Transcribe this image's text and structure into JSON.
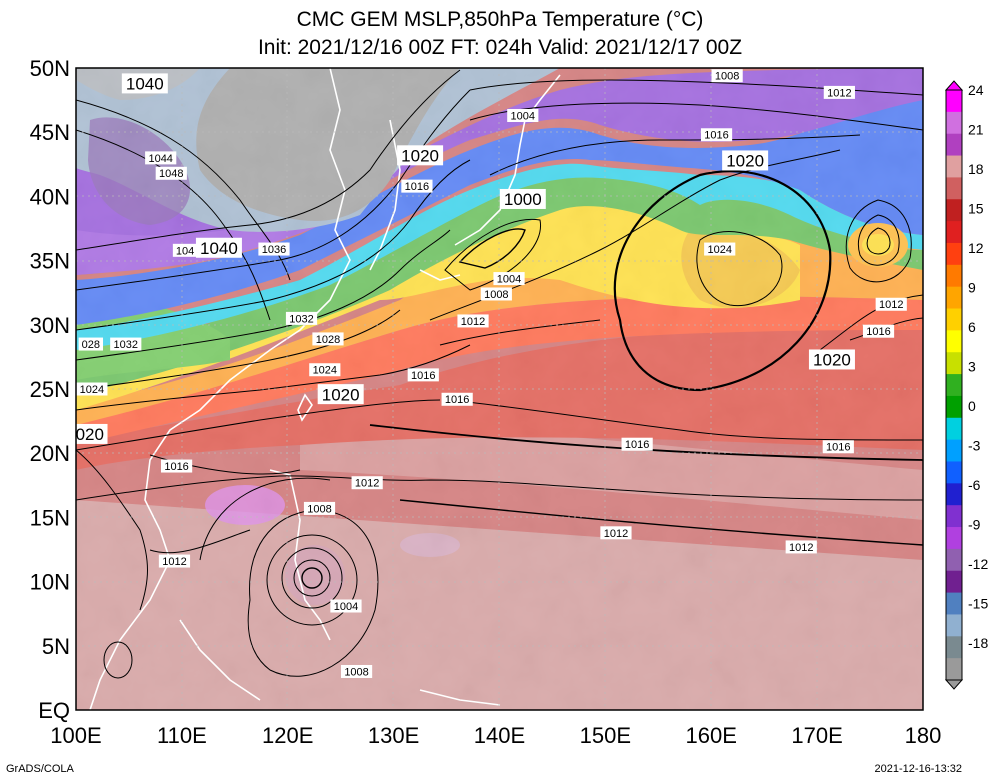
{
  "title": {
    "line1": "CMC GEM MSLP,850hPa Temperature (°C)",
    "line2": "Init: 2021/12/16 00Z  FT: 024h  Valid: 2021/12/17 00Z"
  },
  "axes": {
    "lat_labels": [
      "50N",
      "45N",
      "40N",
      "35N",
      "30N",
      "25N",
      "20N",
      "15N",
      "10N",
      "5N",
      "EQ"
    ],
    "lon_labels": [
      "100E",
      "110E",
      "120E",
      "130E",
      "140E",
      "150E",
      "160E",
      "170E",
      "180"
    ]
  },
  "colorbar": {
    "labels": [
      "24",
      "21",
      "18",
      "15",
      "12",
      "9",
      "6",
      "3",
      "0",
      "-3",
      "-6",
      "-9",
      "-12",
      "-15",
      "-18"
    ],
    "colors": [
      "#f0f",
      "#d070e0",
      "#b040c0",
      "#e0a0a0",
      "#d06060",
      "#c02020",
      "#e02020",
      "#ff4010",
      "#ff7a00",
      "#ffa500",
      "#ffd000",
      "#ffff00",
      "#c8e000",
      "#30b020",
      "#00a000",
      "#00d0e0",
      "#00a0ff",
      "#1060ff",
      "#2020d0",
      "#8030d0",
      "#b040e0",
      "#9060b0",
      "#702090",
      "#5080c0",
      "#90b0d0",
      "#7a8a90",
      "#9a9a9a"
    ]
  },
  "pressure_labels": [
    {
      "text": "1040",
      "lon": 106.5,
      "lat": 48.8,
      "big": true
    },
    {
      "text": "1044",
      "lon": 108,
      "lat": 43.0
    },
    {
      "text": "1048",
      "lon": 109,
      "lat": 41.8
    },
    {
      "text": "104",
      "lon": 110.3,
      "lat": 35.8
    },
    {
      "text": "1040",
      "lon": 113.5,
      "lat": 36.0,
      "big": true
    },
    {
      "text": "1036",
      "lon": 118.7,
      "lat": 35.9
    },
    {
      "text": "1032",
      "lon": 121.3,
      "lat": 30.5
    },
    {
      "text": "1028",
      "lon": 123.8,
      "lat": 28.9
    },
    {
      "text": "028",
      "lon": 101.4,
      "lat": 28.5
    },
    {
      "text": "1032",
      "lon": 104.7,
      "lat": 28.5
    },
    {
      "text": "1024",
      "lon": 101.5,
      "lat": 25.0
    },
    {
      "text": "1024",
      "lon": 123.5,
      "lat": 26.5
    },
    {
      "text": "1020",
      "lon": 125.0,
      "lat": 24.6,
      "big": true
    },
    {
      "text": "020",
      "lon": 101.3,
      "lat": 21.5,
      "big": true
    },
    {
      "text": "1016",
      "lon": 109.5,
      "lat": 19.0
    },
    {
      "text": "1020",
      "lon": 132.5,
      "lat": 43.2,
      "big": true
    },
    {
      "text": "1016",
      "lon": 132.2,
      "lat": 40.8
    },
    {
      "text": "1004",
      "lon": 142.2,
      "lat": 46.3
    },
    {
      "text": "1000",
      "lon": 142.2,
      "lat": 39.8,
      "big": true
    },
    {
      "text": "1004",
      "lon": 140.9,
      "lat": 33.6
    },
    {
      "text": "1008",
      "lon": 139.7,
      "lat": 32.4
    },
    {
      "text": "1012",
      "lon": 137.5,
      "lat": 30.3
    },
    {
      "text": "1016",
      "lon": 132.8,
      "lat": 26.1
    },
    {
      "text": "1016",
      "lon": 136.0,
      "lat": 24.2
    },
    {
      "text": "1012",
      "lon": 127.5,
      "lat": 17.7
    },
    {
      "text": "1008",
      "lon": 123.0,
      "lat": 15.7
    },
    {
      "text": "1004",
      "lon": 125.5,
      "lat": 8.1
    },
    {
      "text": "1008",
      "lon": 126.5,
      "lat": 3.0
    },
    {
      "text": "1012",
      "lon": 109.3,
      "lat": 11.6
    },
    {
      "text": "1016",
      "lon": 153.0,
      "lat": 20.7
    },
    {
      "text": "1016",
      "lon": 172.0,
      "lat": 20.5
    },
    {
      "text": "1012",
      "lon": 151.0,
      "lat": 13.8
    },
    {
      "text": "1012",
      "lon": 168.5,
      "lat": 12.7
    },
    {
      "text": "1024",
      "lon": 160.8,
      "lat": 35.9
    },
    {
      "text": "1020",
      "lon": 163.2,
      "lat": 42.8,
      "big": true
    },
    {
      "text": "1020",
      "lon": 171.4,
      "lat": 27.3,
      "big": true
    },
    {
      "text": "1016",
      "lon": 160.5,
      "lat": 44.8
    },
    {
      "text": "1008",
      "lon": 161.5,
      "lat": 49.4
    },
    {
      "text": "1012",
      "lon": 172.1,
      "lat": 48.1
    },
    {
      "text": "1012",
      "lon": 177.0,
      "lat": 31.6
    },
    {
      "text": "1016",
      "lon": 175.8,
      "lat": 29.5
    }
  ],
  "footer": {
    "left": "GrADS/COLA",
    "right": "2021-12-16-13:32"
  }
}
